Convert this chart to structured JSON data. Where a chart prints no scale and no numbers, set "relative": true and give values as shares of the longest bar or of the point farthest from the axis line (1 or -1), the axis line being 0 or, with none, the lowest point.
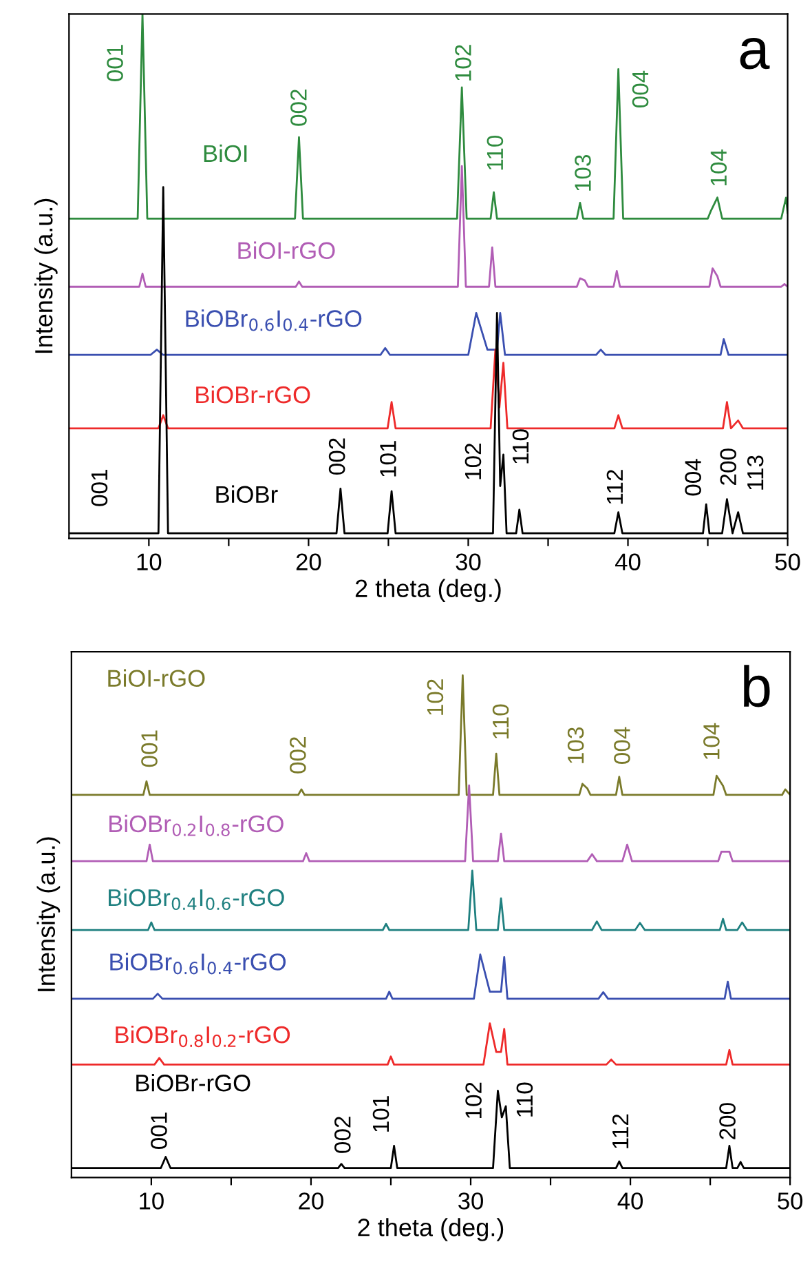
{
  "chart_data": [
    {
      "type": "line",
      "relative": true,
      "xlabel": "2 theta (deg.)",
      "ylabel": "Intensity (a.u.)",
      "xlim": [
        5,
        50
      ],
      "xticks": [
        10,
        {
          "value": 15,
          "label": null
        },
        20,
        {
          "value": 25,
          "label": null
        },
        30,
        {
          "value": 35,
          "label": null
        },
        40,
        {
          "value": 45,
          "label": null
        },
        50
      ],
      "series": [
        {
          "name": "BiOI",
          "color": "#2e8b3e",
          "x": [
            5,
            9.3,
            9.6,
            9.9,
            19.15,
            19.4,
            19.65,
            29.3,
            29.6,
            29.9,
            31.4,
            31.6,
            31.8,
            36.8,
            37.0,
            37.2,
            39.1,
            39.4,
            39.7,
            45.0,
            45.2,
            45.6,
            45.9,
            49.6,
            49.9,
            50
          ],
          "values": [
            0.61,
            0.61,
            1.0,
            0.61,
            0.61,
            0.765,
            0.61,
            0.61,
            0.86,
            0.61,
            0.61,
            0.66,
            0.61,
            0.61,
            0.64,
            0.61,
            0.61,
            0.895,
            0.61,
            0.61,
            0.625,
            0.65,
            0.61,
            0.61,
            0.65,
            0.62
          ]
        },
        {
          "name": "BiOI-rGO",
          "color": "#b15db5",
          "x": [
            5,
            9.4,
            9.6,
            9.8,
            19.2,
            19.4,
            19.6,
            29.35,
            29.6,
            29.85,
            31.3,
            31.5,
            31.7,
            36.8,
            37.0,
            37.3,
            37.5,
            39.1,
            39.3,
            39.5,
            45.1,
            45.3,
            45.6,
            45.8,
            49.6,
            49.8,
            50
          ],
          "values": [
            0.48,
            0.48,
            0.505,
            0.48,
            0.48,
            0.49,
            0.48,
            0.48,
            0.71,
            0.48,
            0.48,
            0.555,
            0.48,
            0.48,
            0.496,
            0.492,
            0.48,
            0.48,
            0.51,
            0.48,
            0.48,
            0.515,
            0.5,
            0.48,
            0.48,
            0.485,
            0.48
          ]
        },
        {
          "name": "BiOBr$_{0.6}$I$_{0.4}$-rGO",
          "color": "#3a4fb0",
          "x": [
            5,
            10.1,
            10.5,
            10.9,
            24.5,
            24.8,
            25.1,
            30.0,
            30.5,
            31.2,
            31.8,
            32.0,
            32.3,
            38.0,
            38.3,
            38.6,
            45.8,
            46.0,
            46.3,
            50
          ],
          "values": [
            0.35,
            0.35,
            0.36,
            0.35,
            0.35,
            0.363,
            0.35,
            0.35,
            0.43,
            0.36,
            0.36,
            0.43,
            0.35,
            0.35,
            0.36,
            0.35,
            0.35,
            0.38,
            0.35,
            0.35
          ]
        },
        {
          "name": "BiOBr-rGO",
          "color": "#ee2a2a",
          "x": [
            5,
            10.6,
            10.9,
            11.2,
            24.95,
            25.2,
            25.45,
            31.4,
            31.7,
            31.95,
            32.2,
            32.45,
            39.15,
            39.4,
            39.65,
            45.95,
            46.2,
            46.45,
            46.9,
            47.2,
            50
          ],
          "values": [
            0.21,
            0.21,
            0.235,
            0.21,
            0.21,
            0.26,
            0.21,
            0.21,
            0.36,
            0.25,
            0.335,
            0.21,
            0.21,
            0.235,
            0.21,
            0.21,
            0.26,
            0.21,
            0.225,
            0.21,
            0.21
          ]
        },
        {
          "name": "BiOBr",
          "color": "#000000",
          "x": [
            5,
            10.6,
            10.9,
            11.2,
            21.75,
            22.0,
            22.25,
            24.95,
            25.2,
            25.45,
            31.55,
            31.8,
            32.0,
            32.2,
            32.4,
            33.0,
            33.2,
            33.4,
            39.15,
            39.4,
            39.65,
            44.7,
            44.9,
            45.1,
            45.9,
            46.2,
            46.55,
            46.9,
            47.2,
            50
          ],
          "values": [
            0.01,
            0.01,
            0.67,
            0.01,
            0.01,
            0.095,
            0.01,
            0.01,
            0.09,
            0.01,
            0.01,
            0.43,
            0.1,
            0.16,
            0.01,
            0.01,
            0.055,
            0.01,
            0.01,
            0.05,
            0.01,
            0.01,
            0.065,
            0.01,
            0.01,
            0.075,
            0.01,
            0.05,
            0.01,
            0.01
          ]
        }
      ],
      "annotations": [
        {
          "text": "001",
          "x": 9.6,
          "y": 1.0
        },
        {
          "text": "002",
          "x": 19.4,
          "y": 0.765
        },
        {
          "text": "102",
          "x": 29.6,
          "y": 0.86
        },
        {
          "text": "110",
          "x": 31.6,
          "y": 0.66
        },
        {
          "text": "103",
          "x": 37.0,
          "y": 0.64
        },
        {
          "text": "004",
          "x": 39.4,
          "y": 0.895
        },
        {
          "text": "104",
          "x": 45.6,
          "y": 0.65
        },
        {
          "text": "002",
          "x": 22.0,
          "y": 0.095
        },
        {
          "text": "101",
          "x": 25.2,
          "y": 0.09
        },
        {
          "text": "110",
          "x": 32.2,
          "y": 0.16
        },
        {
          "text": "112",
          "x": 39.4,
          "y": 0.05
        },
        {
          "text": "004",
          "x": 44.9,
          "y": 0.065
        },
        {
          "text": "200",
          "x": 46.2,
          "y": 0.075
        },
        {
          "text": "113",
          "x": 46.9,
          "y": 0.05
        },
        "001",
        "102",
        "a"
      ]
    },
    {
      "type": "line",
      "relative": true,
      "xlabel": "2 theta (deg.)",
      "ylabel": "Intensity (a.u.)",
      "xlim": [
        5,
        50
      ],
      "xticks": [
        10,
        {
          "value": 15,
          "label": null
        },
        20,
        {
          "value": 25,
          "label": null
        },
        30,
        {
          "value": 35,
          "label": null
        },
        40,
        {
          "value": 45,
          "label": null
        },
        50
      ],
      "series": [
        {
          "name": "BiOI-rGO",
          "color": "#7a7a2a",
          "x": [
            5,
            9.5,
            9.7,
            9.9,
            19.2,
            19.4,
            19.6,
            29.25,
            29.5,
            29.75,
            31.4,
            31.6,
            31.8,
            36.8,
            37.0,
            37.3,
            37.5,
            39.1,
            39.3,
            39.5,
            45.2,
            45.4,
            45.8,
            46.0,
            49.5,
            49.7,
            50
          ],
          "values": [
            0.762,
            0.762,
            0.789,
            0.762,
            0.762,
            0.773,
            0.762,
            0.762,
            1.0,
            0.762,
            0.762,
            0.844,
            0.762,
            0.762,
            0.784,
            0.775,
            0.762,
            0.762,
            0.798,
            0.762,
            0.762,
            0.8,
            0.78,
            0.762,
            0.762,
            0.773,
            0.762
          ]
        },
        {
          "name": "BiOBr$_{0.2}$I$_{0.8}$-rGO",
          "color": "#b15db5",
          "x": [
            5,
            9.7,
            9.9,
            10.1,
            19.5,
            19.7,
            19.9,
            29.65,
            29.9,
            30.15,
            31.7,
            31.9,
            32.1,
            37.3,
            37.6,
            37.9,
            39.5,
            39.8,
            40.1,
            45.5,
            45.7,
            46.2,
            46.4,
            50
          ],
          "values": [
            0.63,
            0.63,
            0.663,
            0.63,
            0.63,
            0.646,
            0.63,
            0.63,
            0.781,
            0.63,
            0.63,
            0.685,
            0.63,
            0.63,
            0.644,
            0.63,
            0.63,
            0.663,
            0.63,
            0.63,
            0.649,
            0.649,
            0.63,
            0.63
          ]
        },
        {
          "name": "BiOBr$_{0.4}$I$_{0.6}$-rGO",
          "color": "#1f8080",
          "x": [
            5,
            9.8,
            10.0,
            10.2,
            24.5,
            24.7,
            24.9,
            29.85,
            30.1,
            30.35,
            31.7,
            31.9,
            32.1,
            37.6,
            37.9,
            38.2,
            40.3,
            40.6,
            40.9,
            45.6,
            45.8,
            46.0,
            46.7,
            47.0,
            47.3,
            50
          ],
          "values": [
            0.493,
            0.493,
            0.508,
            0.493,
            0.493,
            0.505,
            0.493,
            0.493,
            0.611,
            0.493,
            0.493,
            0.556,
            0.493,
            0.493,
            0.51,
            0.493,
            0.493,
            0.507,
            0.493,
            0.493,
            0.515,
            0.493,
            0.493,
            0.508,
            0.493,
            0.493
          ]
        },
        {
          "name": "BiOBr$_{0.6}$I$_{0.4}$-rGO",
          "color": "#3a4fb0",
          "x": [
            5,
            10.1,
            10.4,
            10.7,
            24.7,
            24.9,
            25.1,
            30.2,
            30.6,
            31.2,
            31.9,
            32.1,
            32.3,
            38.0,
            38.3,
            38.6,
            45.9,
            46.1,
            46.3,
            50
          ],
          "values": [
            0.356,
            0.356,
            0.366,
            0.356,
            0.356,
            0.37,
            0.356,
            0.356,
            0.444,
            0.37,
            0.37,
            0.439,
            0.356,
            0.356,
            0.369,
            0.356,
            0.356,
            0.39,
            0.356,
            0.356
          ]
        },
        {
          "name": "BiOBr$_{0.8}$I$_{0.2}$-rGO",
          "color": "#ee2a2a",
          "x": [
            5,
            10.2,
            10.5,
            10.8,
            24.8,
            25.0,
            25.2,
            30.8,
            31.2,
            31.6,
            31.9,
            32.1,
            32.3,
            38.5,
            38.8,
            39.1,
            46.0,
            46.2,
            46.4,
            50
          ],
          "values": [
            0.225,
            0.225,
            0.238,
            0.225,
            0.225,
            0.241,
            0.225,
            0.225,
            0.307,
            0.25,
            0.25,
            0.296,
            0.225,
            0.225,
            0.235,
            0.225,
            0.225,
            0.254,
            0.225,
            0.225
          ]
        },
        {
          "name": "BiOBr-rGO",
          "color": "#000000",
          "x": [
            5,
            10.6,
            10.9,
            11.2,
            21.7,
            21.9,
            22.1,
            25.0,
            25.2,
            25.4,
            31.4,
            31.7,
            31.95,
            32.2,
            32.45,
            39.1,
            39.3,
            39.5,
            46.0,
            46.2,
            46.4,
            46.7,
            46.9,
            47.1,
            50
          ],
          "values": [
            0.019,
            0.019,
            0.041,
            0.019,
            0.019,
            0.027,
            0.019,
            0.019,
            0.063,
            0.019,
            0.019,
            0.173,
            0.12,
            0.142,
            0.019,
            0.019,
            0.032,
            0.019,
            0.019,
            0.063,
            0.019,
            0.019,
            0.031,
            0.019,
            0.019
          ]
        }
      ],
      "annotations": [
        {
          "text": "001",
          "x": 9.7,
          "y": 0.789
        },
        {
          "text": "002",
          "x": 19.4,
          "y": 0.773
        },
        {
          "text": "102",
          "x": 29.5,
          "y": 1.0
        },
        {
          "text": "110",
          "x": 31.6,
          "y": 0.844
        },
        {
          "text": "103",
          "x": 37.0,
          "y": 0.784
        },
        {
          "text": "004",
          "x": 39.3,
          "y": 0.798
        },
        {
          "text": "104",
          "x": 45.4,
          "y": 0.8
        },
        {
          "text": "001",
          "x": 10.9,
          "y": 0.041
        },
        {
          "text": "002",
          "x": 21.9,
          "y": 0.027
        },
        {
          "text": "101",
          "x": 25.2,
          "y": 0.063
        },
        {
          "text": "102",
          "x": 31.7,
          "y": 0.173
        },
        {
          "text": "110",
          "x": 32.2,
          "y": 0.142
        },
        {
          "text": "112",
          "x": 39.3,
          "y": 0.032
        },
        {
          "text": "200",
          "x": 46.2,
          "y": 0.063
        },
        "b"
      ]
    }
  ]
}
